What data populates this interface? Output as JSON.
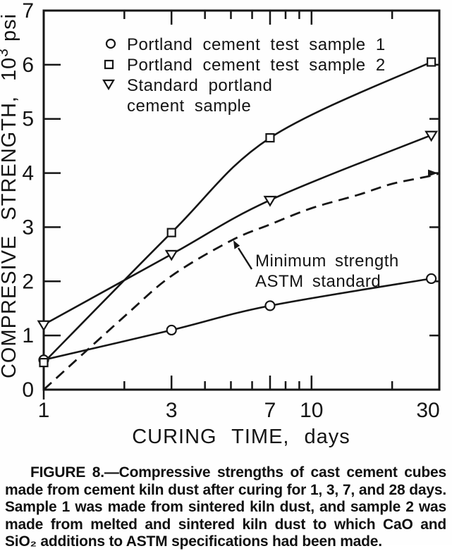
{
  "chart_data": {
    "type": "line",
    "title": "",
    "xlabel": "CURING TIME, days",
    "ylabel": "COMPRESIVE STRENGTH, 10",
    "ylabel_sup": "3",
    "ylabel_unit": "psi",
    "x_scale": "log",
    "xlim": [
      1,
      30
    ],
    "ylim": [
      0,
      7
    ],
    "x_ticks_major": [
      1,
      3,
      7,
      10,
      30
    ],
    "x_ticks_minor": [
      2,
      4,
      5,
      6,
      8,
      9,
      20
    ],
    "y_ticks": [
      0,
      1,
      2,
      3,
      4,
      5,
      6,
      7
    ],
    "grid": "off",
    "series": [
      {
        "name": "Minimum strength ASTM standard",
        "marker": "none",
        "line": "dashed",
        "end_arrow": true,
        "points": [
          [
            1,
            0
          ],
          [
            2,
            1.35
          ],
          [
            3,
            2.1
          ],
          [
            5,
            2.75
          ],
          [
            7,
            3.05
          ],
          [
            10,
            3.35
          ],
          [
            15,
            3.6
          ],
          [
            20,
            3.8
          ],
          [
            28,
            3.95
          ],
          [
            30,
            4.0
          ]
        ]
      },
      {
        "name": "Portland cement test sample 1",
        "marker": "circle",
        "line": "solid",
        "points": [
          [
            1,
            0.55
          ],
          [
            3,
            1.1
          ],
          [
            7,
            1.55
          ],
          [
            28,
            2.05
          ]
        ]
      },
      {
        "name": "Standard portland cement sample",
        "marker": "triangle-down",
        "line": "solid",
        "points": [
          [
            1,
            1.2
          ],
          [
            3,
            2.5
          ],
          [
            7,
            3.5
          ],
          [
            28,
            4.7
          ]
        ]
      },
      {
        "name": "Portland cement test sample 2",
        "marker": "square",
        "line": "solid",
        "points": [
          [
            1,
            0.5
          ],
          [
            3,
            2.9
          ],
          [
            7,
            4.65
          ],
          [
            28,
            6.05
          ]
        ]
      }
    ],
    "legend": {
      "position": "upper-left-inside",
      "items": [
        {
          "symbol": "circle",
          "line1": "Portland cement test sample 1",
          "line2": ""
        },
        {
          "symbol": "square",
          "line1": "Portland cement test sample 2",
          "line2": ""
        },
        {
          "symbol": "triangle-down",
          "line1": "Standard portland",
          "line2": "cement sample"
        }
      ]
    },
    "annotation": {
      "line1": "Minimum strength",
      "line2": "ASTM standard",
      "target": "dashed ASTM curve"
    }
  },
  "caption": {
    "text": "FIGURE 8.—Compressive strengths of cast cement cubes made from cement kiln dust after curing for 1, 3, 7, and 28 days. Sample 1 was made from sintered kiln dust, and sample 2 was made from melted and sintered kiln dust to which CaO and SiO₂ additions to ASTM specifications had been made."
  },
  "colors": {
    "ink": "#161616",
    "paper": "#fefefe"
  }
}
